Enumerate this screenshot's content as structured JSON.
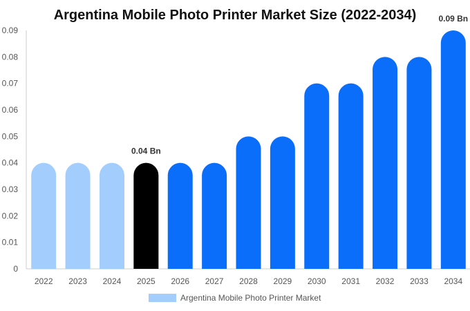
{
  "chart_data": {
    "type": "bar",
    "title": "Argentina Mobile Photo Printer Market Size (2022-2034)",
    "categories": [
      "2022",
      "2023",
      "2024",
      "2025",
      "2026",
      "2027",
      "2028",
      "2029",
      "2030",
      "2031",
      "2032",
      "2033",
      "2034"
    ],
    "series": [
      {
        "name": "Argentina Mobile Photo Printer Market",
        "values": [
          0.04,
          0.04,
          0.04,
          0.04,
          0.04,
          0.04,
          0.05,
          0.05,
          0.07,
          0.07,
          0.08,
          0.08,
          0.09
        ]
      }
    ],
    "y_ticks": [
      "0",
      "0.01",
      "0.02",
      "0.03",
      "0.04",
      "0.05",
      "0.06",
      "0.07",
      "0.08",
      "0.09"
    ],
    "ylim": [
      0,
      0.09
    ],
    "data_labels": [
      {
        "category": "2025",
        "text": "0.04 Bn"
      },
      {
        "category": "2034",
        "text": "0.09 Bn"
      }
    ],
    "legend_position": "bottom-center",
    "grid": false,
    "colors": {
      "historical": "#a3cdfd",
      "base_year": "#000000",
      "forecast": "#0a6efa",
      "legend": "#a3cdfd",
      "axis": "#cccccc"
    },
    "bar_color_groups": [
      "historical",
      "historical",
      "historical",
      "base_year",
      "forecast",
      "forecast",
      "forecast",
      "forecast",
      "forecast",
      "forecast",
      "forecast",
      "forecast",
      "forecast"
    ]
  }
}
